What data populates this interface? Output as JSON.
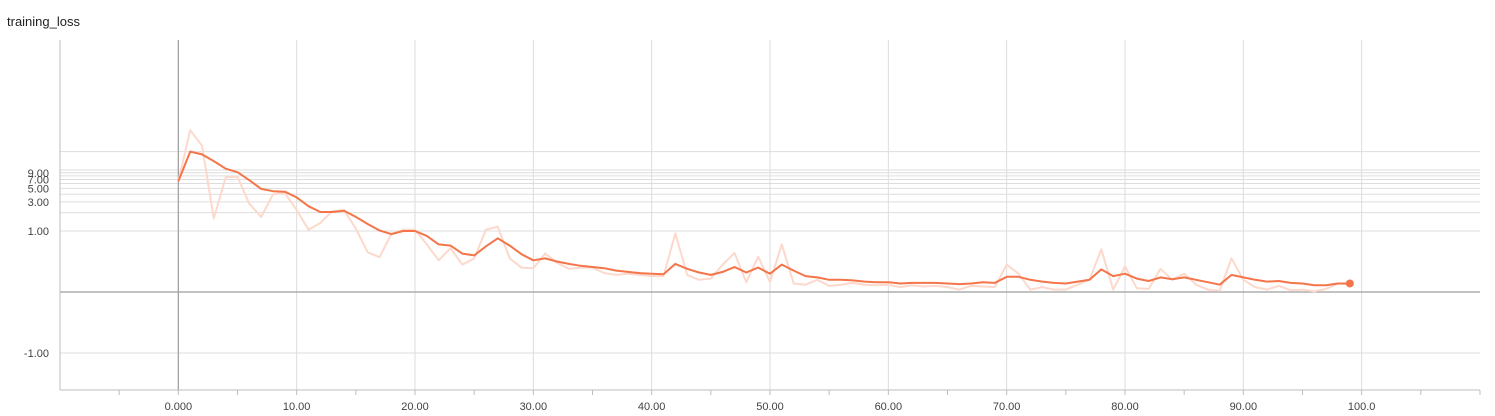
{
  "chart_data": {
    "type": "line",
    "title": "training_loss",
    "xlabel": "",
    "ylabel": "",
    "xlim": [
      -10,
      110
    ],
    "y_scale": "symlog",
    "grid": true,
    "x_ticks": [
      "0.000",
      "10.00",
      "20.00",
      "30.00",
      "40.00",
      "50.00",
      "60.00",
      "70.00",
      "80.00",
      "90.00",
      "100.0"
    ],
    "y_ticks": [
      "9.00",
      "7.00",
      "5.00",
      "3.00",
      "1.00",
      "-1.00"
    ],
    "colors": {
      "smoothed": "#f4754a",
      "raw": "#fcd9cc"
    },
    "series": [
      {
        "smoothing": "raw",
        "x": [
          0,
          1,
          2,
          3,
          4,
          5,
          6,
          7,
          8,
          9,
          10,
          11,
          12,
          13,
          14,
          15,
          16,
          17,
          18,
          19,
          20,
          21,
          22,
          23,
          24,
          25,
          26,
          27,
          28,
          29,
          30,
          31,
          32,
          33,
          34,
          35,
          36,
          37,
          38,
          39,
          40,
          41,
          42,
          43,
          44,
          45,
          46,
          47,
          48,
          49,
          50,
          51,
          52,
          53,
          54,
          55,
          56,
          57,
          58,
          59,
          60,
          61,
          62,
          63,
          64,
          65,
          66,
          67,
          68,
          69,
          70,
          71,
          72,
          73,
          74,
          75,
          76,
          77,
          78,
          79,
          80,
          81,
          82,
          83,
          84,
          85,
          86,
          87,
          88,
          89,
          90,
          91,
          92,
          93,
          94,
          95,
          96,
          97,
          98,
          99
        ],
        "y": [
          6.5,
          45,
          25,
          1.6,
          7.6,
          7.7,
          2.8,
          1.7,
          4.0,
          4.2,
          2.2,
          1.05,
          1.35,
          2.1,
          2.2,
          1.1,
          0.65,
          0.57,
          0.95,
          1.05,
          1.05,
          0.78,
          0.52,
          0.72,
          0.45,
          0.55,
          1.05,
          1.18,
          0.55,
          0.4,
          0.39,
          0.63,
          0.48,
          0.38,
          0.4,
          0.4,
          0.31,
          0.28,
          0.3,
          0.28,
          0.26,
          0.26,
          0.96,
          0.28,
          0.2,
          0.22,
          0.45,
          0.64,
          0.16,
          0.58,
          0.16,
          0.78,
          0.14,
          0.12,
          0.2,
          0.1,
          0.12,
          0.15,
          0.12,
          0.11,
          0.12,
          0.08,
          0.11,
          0.09,
          0.1,
          0.08,
          0.04,
          0.1,
          0.09,
          0.08,
          0.45,
          0.3,
          0.04,
          0.08,
          0.04,
          0.04,
          0.12,
          0.2,
          0.7,
          0.04,
          0.42,
          0.06,
          0.05,
          0.38,
          0.2,
          0.3,
          0.12,
          0.04,
          0.02,
          0.55,
          0.2,
          0.08,
          0.04,
          0.1,
          0.03,
          0.04,
          0.01,
          0.05,
          0.14,
          0.13
        ]
      },
      {
        "smoothing": "smoothed",
        "x": [
          0,
          1,
          2,
          3,
          4,
          5,
          6,
          7,
          8,
          9,
          10,
          11,
          12,
          13,
          14,
          15,
          16,
          17,
          18,
          19,
          20,
          21,
          22,
          23,
          24,
          25,
          26,
          27,
          28,
          29,
          30,
          31,
          32,
          33,
          34,
          35,
          36,
          37,
          38,
          39,
          40,
          41,
          42,
          43,
          44,
          45,
          46,
          47,
          48,
          49,
          50,
          51,
          52,
          53,
          54,
          55,
          56,
          57,
          58,
          59,
          60,
          61,
          62,
          63,
          64,
          65,
          66,
          67,
          68,
          69,
          70,
          71,
          72,
          73,
          74,
          75,
          76,
          77,
          78,
          79,
          80,
          81,
          82,
          83,
          84,
          85,
          86,
          87,
          88,
          89,
          90,
          91,
          92,
          93,
          94,
          95,
          96,
          97,
          98,
          99
        ],
        "y": [
          6.5,
          20,
          18,
          14,
          10.5,
          9.2,
          6.8,
          4.9,
          4.5,
          4.4,
          3.55,
          2.55,
          2.05,
          2.05,
          2.15,
          1.7,
          1.3,
          1.02,
          0.95,
          1.0,
          1.0,
          0.92,
          0.78,
          0.76,
          0.63,
          0.6,
          0.75,
          0.88,
          0.76,
          0.62,
          0.52,
          0.55,
          0.5,
          0.46,
          0.43,
          0.41,
          0.39,
          0.35,
          0.33,
          0.31,
          0.3,
          0.29,
          0.46,
          0.38,
          0.32,
          0.28,
          0.33,
          0.41,
          0.32,
          0.4,
          0.3,
          0.45,
          0.35,
          0.26,
          0.24,
          0.2,
          0.2,
          0.19,
          0.17,
          0.16,
          0.16,
          0.14,
          0.15,
          0.15,
          0.15,
          0.14,
          0.13,
          0.14,
          0.16,
          0.15,
          0.25,
          0.25,
          0.2,
          0.17,
          0.15,
          0.14,
          0.17,
          0.2,
          0.37,
          0.26,
          0.3,
          0.22,
          0.18,
          0.24,
          0.21,
          0.24,
          0.2,
          0.16,
          0.12,
          0.28,
          0.24,
          0.2,
          0.17,
          0.18,
          0.15,
          0.14,
          0.11,
          0.11,
          0.14,
          0.14
        ]
      }
    ]
  }
}
